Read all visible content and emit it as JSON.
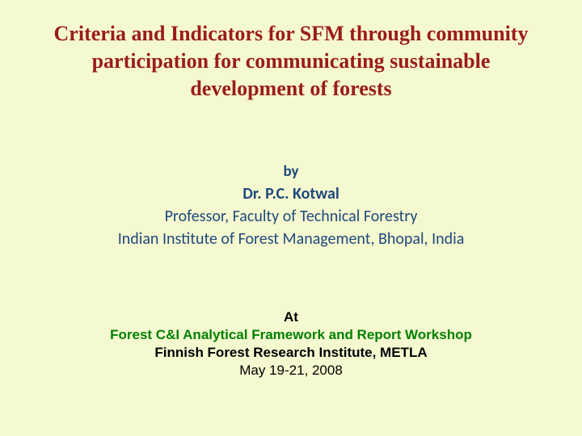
{
  "title": {
    "text": "Criteria and Indicators for SFM through community participation for communicating sustainable development of forests",
    "color": "#9b1b1b",
    "fontsize": 26
  },
  "author": {
    "by_label": "by",
    "name": "Dr. P.C. Kotwal",
    "title": "Professor, Faculty of Technical Forestry",
    "affiliation": "Indian Institute of Forest Management, Bhopal, India",
    "text_color": "#1f497d",
    "fontsize_label": 19,
    "fontsize_name": 20,
    "fontsize_title": 20,
    "fontsize_affiliation": 20
  },
  "venue": {
    "at_label": "At",
    "workshop": "Forest C&I Analytical Framework and Report Workshop",
    "institute": "Finnish Forest Research Institute, METLA",
    "date": "May 19-21, 2008",
    "at_color": "#000000",
    "workshop_color": "#008000",
    "institute_color": "#000000",
    "date_color": "#000000",
    "fontsize": 17
  },
  "background_color": "#f5f9d0"
}
